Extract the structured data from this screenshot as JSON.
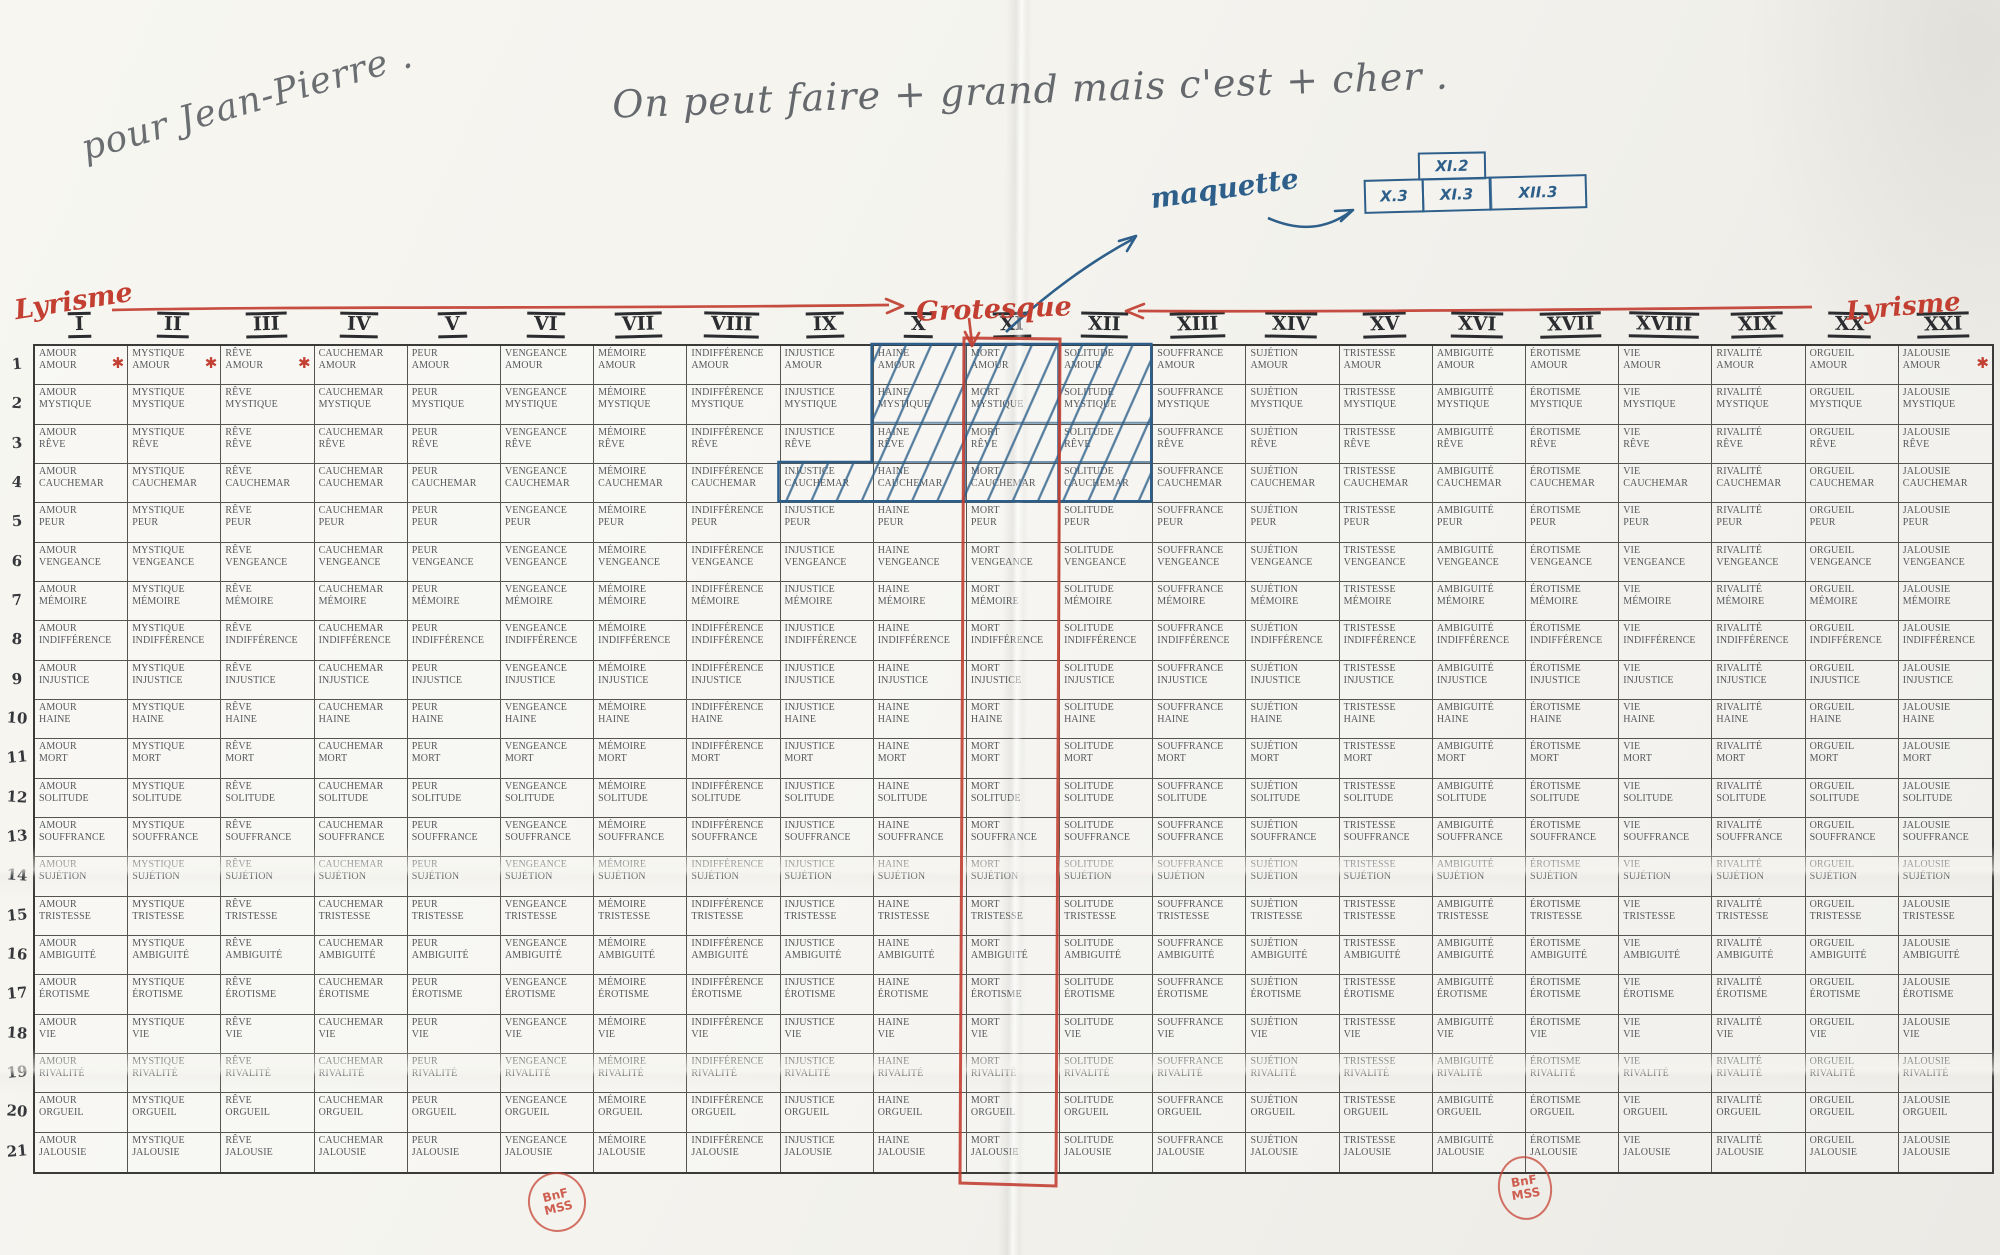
{
  "annotations": {
    "dedication": "pour Jean-Pierre .",
    "note": "On peut faire + grand mais c'est + cher .",
    "maquette_label": "maquette",
    "sketch": {
      "top_row": [
        "XI.2"
      ],
      "bottom_row": [
        "X.3",
        "XI.3",
        "XII.3"
      ]
    },
    "axis_left_label": "Lyrisme",
    "axis_center_label": "Grotesque",
    "axis_right_label": "Lyrisme",
    "stamp_line1": "BnF",
    "stamp_line2": "MSS"
  },
  "table": {
    "romans": [
      "I",
      "II",
      "III",
      "IV",
      "V",
      "VI",
      "VII",
      "VIII",
      "IX",
      "X",
      "XI",
      "XII",
      "XIII",
      "XIV",
      "XV",
      "XVI",
      "XVII",
      "XVIII",
      "XIX",
      "XX",
      "XXI"
    ],
    "row_numbers": [
      "1",
      "2",
      "3",
      "4",
      "5",
      "6",
      "7",
      "8",
      "9",
      "10",
      "11",
      "12",
      "13",
      "14",
      "15",
      "16",
      "17",
      "18",
      "19",
      "20",
      "21"
    ],
    "words": [
      "AMOUR",
      "MYSTIQUE",
      "RÊVE",
      "CAUCHEMAR",
      "PEUR",
      "VENGEANCE",
      "MÉMOIRE",
      "INDIFFÉRENCE",
      "INJUSTICE",
      "HAINE",
      "MORT",
      "SOLITUDE",
      "SOUFFRANCE",
      "SUJÉTION",
      "TRISTESSE",
      "AMBIGUITÉ",
      "ÉROTISME",
      "VIE",
      "RIVALITÉ",
      "ORGUEIL",
      "JALOUSIE"
    ],
    "asterisk_cells": [
      [
        1,
        1
      ],
      [
        1,
        2
      ],
      [
        1,
        3
      ],
      [
        1,
        21
      ]
    ]
  },
  "colors": {
    "red_ink": "#c23f32",
    "blue_ink": "#2d5f8a",
    "pencil": "#6a6e71",
    "type_ink": "#55585c"
  }
}
